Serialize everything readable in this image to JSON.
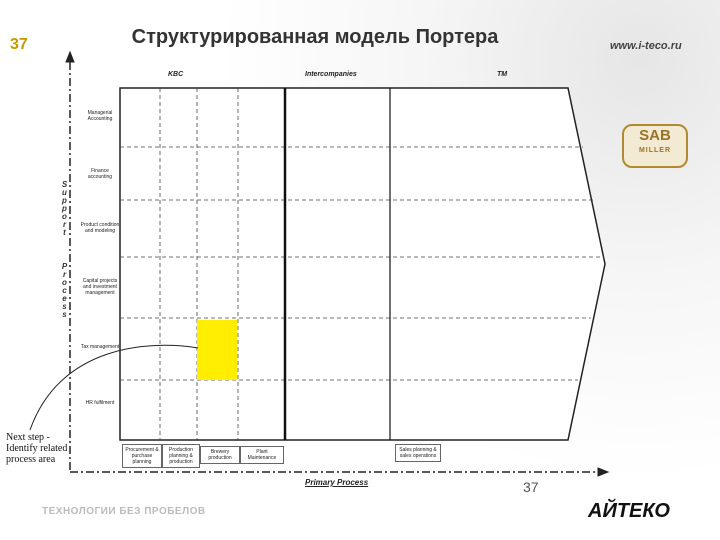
{
  "header": {
    "number": "37",
    "title": "Структурированная модель Портера",
    "url": "www.i-teco.ru"
  },
  "top_labels": [
    "KBC",
    "Intercompanies",
    "TM"
  ],
  "support_label": [
    "Support",
    "Process"
  ],
  "support_rows": [
    "Managerial Accounting",
    "Finance accounting",
    "Product condition and modeling",
    "Capital projects and investment management",
    "Tax management",
    "HR fulfilment"
  ],
  "primary_boxes": [
    "Procurement & purchase planning",
    "Production planning & production",
    "Brewery production",
    "Plant Maintenance",
    "Sales planning & sales operations"
  ],
  "primary_label": "Primary Process",
  "note": "Next step - Identify related process area",
  "logo_sab": [
    "SAB",
    "MILLER"
  ],
  "footer": {
    "slogan": "ТЕХНОЛОГИИ БЕЗ ПРОБЕЛОВ",
    "page": "37",
    "logo": "АЙТЕКО"
  }
}
